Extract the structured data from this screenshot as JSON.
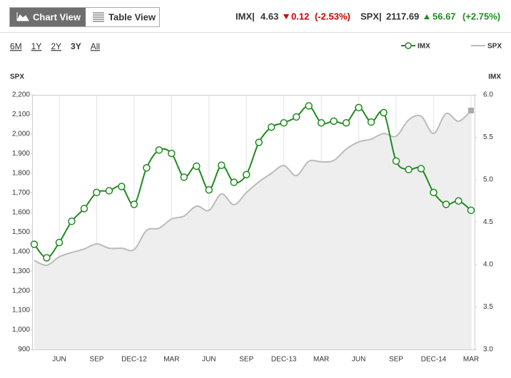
{
  "header": {
    "views": [
      "Chart View",
      "Table View"
    ],
    "quotes": [
      {
        "symbol": "IMX|",
        "price": "4.63",
        "change": "0.12",
        "percent": "(-2.53%)"
      },
      {
        "symbol": "SPX|",
        "price": "2117.69",
        "change": "56.67",
        "percent": "(+2.75%)"
      }
    ],
    "ranges": [
      "6M",
      "1Y",
      "2Y",
      "3Y",
      "All"
    ],
    "active_range": "3Y"
  },
  "chart_data": {
    "type": "line-area",
    "grid": true,
    "legend": "top-right",
    "y_label": "SPX",
    "y2_label": "IMX",
    "categories": [
      null,
      null,
      "JUN",
      null,
      null,
      "SEP",
      null,
      null,
      "DEC-12",
      null,
      null,
      "MAR",
      null,
      null,
      "JUN",
      null,
      null,
      "SEP",
      null,
      null,
      "DEC-13",
      null,
      null,
      "MAR",
      null,
      null,
      "JUN",
      null,
      null,
      "SEP",
      null,
      null,
      "DEC-14",
      null,
      null,
      "MAR"
    ],
    "ylim": [
      900,
      2200
    ],
    "yticks": [
      900,
      {
        "value": 1000,
        "label": "1,000"
      },
      {
        "value": 1100,
        "label": "1,100"
      },
      {
        "value": 1200,
        "label": "1,200"
      },
      {
        "value": 1300,
        "label": "1,300"
      },
      {
        "value": 1400,
        "label": "1,400"
      },
      {
        "value": 1500,
        "label": "1,500"
      },
      {
        "value": 1600,
        "label": "1,600"
      },
      {
        "value": 1700,
        "label": "1,700"
      },
      {
        "value": 1800,
        "label": "1,800"
      },
      {
        "value": 1900,
        "label": "1,900"
      },
      {
        "value": 2000,
        "label": "2,000"
      },
      {
        "value": 2100,
        "label": "2,100"
      },
      {
        "value": 2200,
        "label": "2,200"
      }
    ],
    "y2lim": [
      3,
      6
    ],
    "y2ticks": [
      {
        "value": 3,
        "label": "3.0"
      },
      {
        "value": 3.5,
        "label": "3.5"
      },
      {
        "value": 4,
        "label": "4.0"
      },
      {
        "value": 4.5,
        "label": "4.5"
      },
      {
        "value": 5,
        "label": "5.0"
      },
      {
        "value": 5.5,
        "label": "5.5"
      },
      {
        "value": 6,
        "label": "6.0"
      }
    ],
    "series": [
      {
        "name": "IMX",
        "color": "#1f8a1f",
        "axis": "y2",
        "values": [
          4.24,
          4.08,
          4.26,
          4.51,
          4.66,
          4.85,
          4.87,
          4.92,
          4.71,
          5.14,
          5.35,
          5.31,
          5.03,
          5.16,
          4.88,
          5.17,
          4.97,
          5.06,
          5.44,
          5.62,
          5.67,
          5.74,
          5.87,
          5.67,
          5.69,
          5.67,
          5.85,
          5.68,
          5.79,
          5.22,
          5.12,
          5.13,
          4.85,
          4.71,
          4.75,
          4.64
        ]
      },
      {
        "name": "SPX",
        "color": "#bbbbbb",
        "axis": "y",
        "values": [
          1355,
          1330,
          1373,
          1395,
          1413,
          1439,
          1417,
          1417,
          1410,
          1508,
          1519,
          1566,
          1581,
          1632,
          1610,
          1694,
          1639,
          1701,
          1756,
          1799,
          1839,
          1788,
          1861,
          1858,
          1865,
          1923,
          1960,
          1974,
          2003,
          1989,
          2072,
          2091,
          2003,
          2105,
          2065,
          2120
        ]
      }
    ]
  }
}
